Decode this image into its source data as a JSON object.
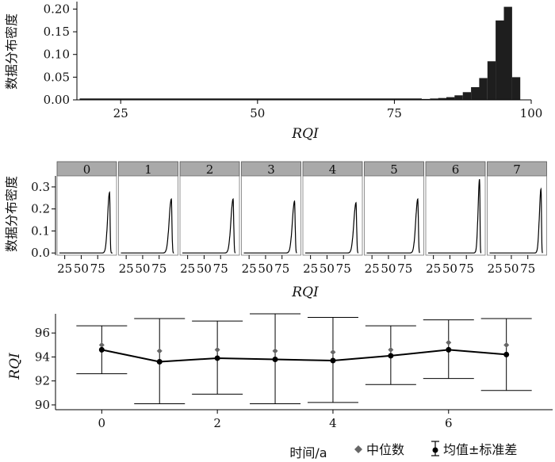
{
  "chart_data": [
    {
      "type": "bar",
      "panel": "top-histogram",
      "xlabel": "RQI",
      "ylabel": "数据分布密度",
      "xlim": [
        17,
        100
      ],
      "ylim": [
        0,
        0.22
      ],
      "xticks": [
        25,
        50,
        75,
        100
      ],
      "yticks": [
        "0.00",
        "0.05",
        "0.10",
        "0.15",
        "0.20"
      ],
      "bin_width": 1.5,
      "bins": [
        {
          "x0": 17.5,
          "value": 0.001
        },
        {
          "x0": 80.0,
          "value": 0.002
        },
        {
          "x0": 81.5,
          "value": 0.003
        },
        {
          "x0": 83.0,
          "value": 0.004
        },
        {
          "x0": 84.5,
          "value": 0.006
        },
        {
          "x0": 86.0,
          "value": 0.01
        },
        {
          "x0": 87.5,
          "value": 0.017
        },
        {
          "x0": 89.0,
          "value": 0.028
        },
        {
          "x0": 90.5,
          "value": 0.048
        },
        {
          "x0": 92.0,
          "value": 0.085
        },
        {
          "x0": 93.5,
          "value": 0.175
        },
        {
          "x0": 95.0,
          "value": 0.205
        },
        {
          "x0": 96.5,
          "value": 0.05
        }
      ],
      "grid": false
    },
    {
      "type": "line",
      "panel": "middle-facets",
      "xlabel": "RQI",
      "ylabel": "数据分布密度",
      "xlim": [
        17,
        100
      ],
      "ylim": [
        -0.01,
        0.35
      ],
      "xticks": [
        25,
        50,
        75
      ],
      "yticks": [
        "0.0",
        "0.1",
        "0.2",
        "0.3"
      ],
      "facets": [
        {
          "label": "0",
          "peak_x": 93.0,
          "peak_y": 0.275,
          "width": 1.3
        },
        {
          "label": "1",
          "peak_x": 93.5,
          "peak_y": 0.245,
          "width": 1.5
        },
        {
          "label": "2",
          "peak_x": 94.0,
          "peak_y": 0.245,
          "width": 1.5
        },
        {
          "label": "3",
          "peak_x": 94.0,
          "peak_y": 0.235,
          "width": 1.5
        },
        {
          "label": "4",
          "peak_x": 94.0,
          "peak_y": 0.228,
          "width": 1.5
        },
        {
          "label": "5",
          "peak_x": 94.5,
          "peak_y": 0.245,
          "width": 1.4
        },
        {
          "label": "6",
          "peak_x": 95.0,
          "peak_y": 0.335,
          "width": 1.0
        },
        {
          "label": "7",
          "peak_x": 95.0,
          "peak_y": 0.29,
          "width": 1.1
        }
      ],
      "grid": false
    },
    {
      "type": "line",
      "panel": "bottom-errorbar",
      "xlabel": "时间/a",
      "ylabel": "RQI",
      "xlim": [
        -0.8,
        7.8
      ],
      "ylim": [
        89.6,
        97.6
      ],
      "xticks": [
        0,
        2,
        4,
        6
      ],
      "yticks": [
        90,
        92,
        94,
        96
      ],
      "categories": [
        0,
        1,
        2,
        3,
        4,
        5,
        6,
        7
      ],
      "series": [
        {
          "name": "均值±标准差",
          "mean": [
            94.6,
            93.6,
            93.9,
            93.8,
            93.7,
            94.1,
            94.6,
            94.2
          ],
          "lower": [
            92.6,
            90.1,
            90.9,
            90.1,
            90.2,
            91.7,
            92.2,
            91.2
          ],
          "upper": [
            96.6,
            97.2,
            97.0,
            97.6,
            97.3,
            96.6,
            97.1,
            97.2
          ]
        },
        {
          "name": "中位数",
          "values": [
            95.0,
            94.5,
            94.6,
            94.5,
            94.4,
            94.6,
            95.2,
            95.0
          ]
        }
      ],
      "legend": {
        "position": "bottom-right",
        "items": [
          "中位数",
          "均值±标准差"
        ]
      },
      "grid": false
    }
  ],
  "colors": {
    "bar": "#1e1e1e",
    "strip": "#a9a9a9",
    "line": "#000000",
    "median": "#666666"
  }
}
